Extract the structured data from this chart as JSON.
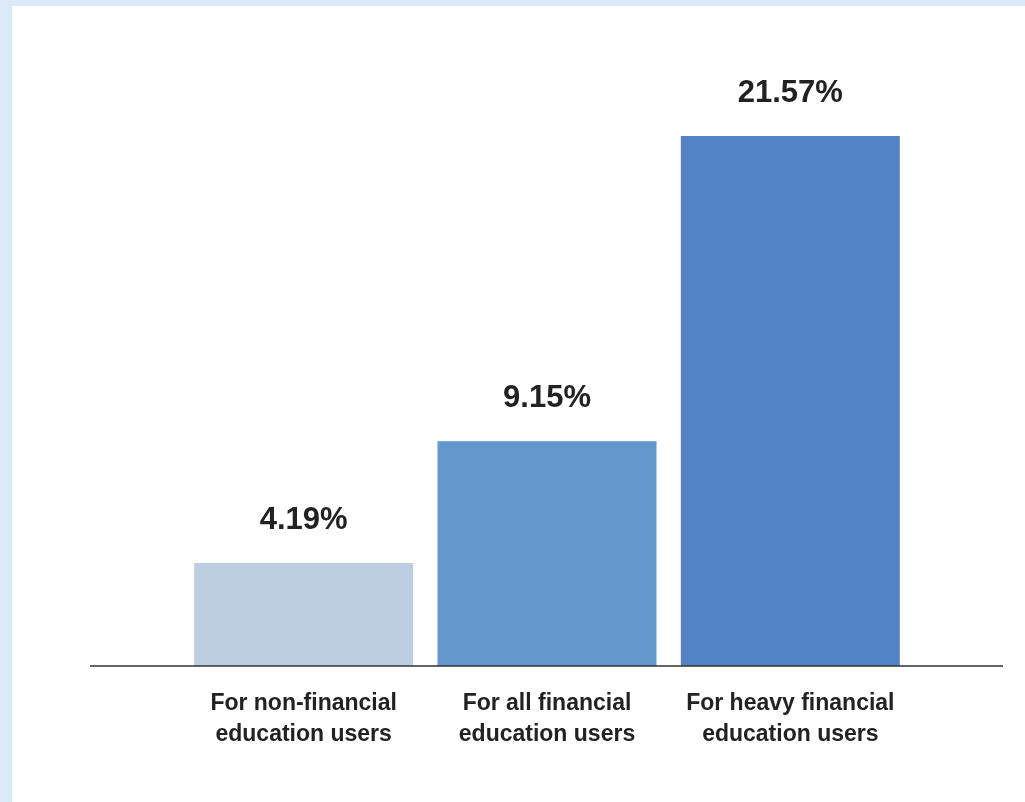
{
  "chart_data": {
    "type": "bar",
    "categories": [
      "For non-financial education users",
      "For all financial education users",
      "For heavy financial education users"
    ],
    "values": [
      4.19,
      9.15,
      21.57
    ],
    "colors": [
      "#bccde0",
      "#6498cc",
      "#5482c6"
    ],
    "value_labels": [
      "4.19%",
      "9.15%",
      "21.57%"
    ]
  }
}
